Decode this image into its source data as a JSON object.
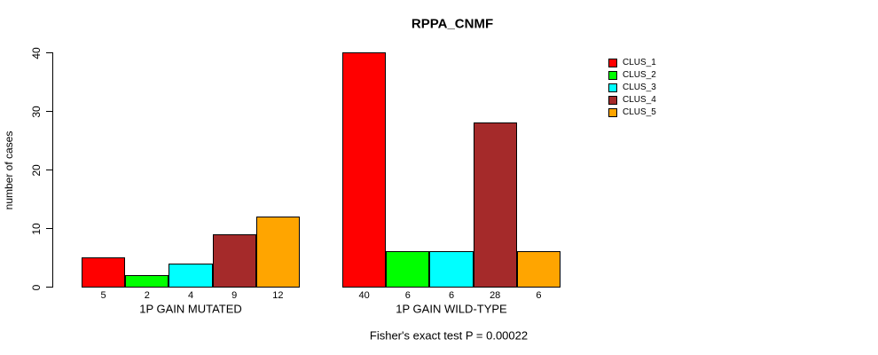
{
  "chart_data": {
    "type": "bar",
    "title": "RPPA_CNMF",
    "ylabel": "number of cases",
    "ylim": [
      0,
      40
    ],
    "yticks": [
      "0",
      "10",
      "20",
      "30",
      "40"
    ],
    "grid": false,
    "legend_position": "right-outside",
    "categories": [
      "1P GAIN MUTATED",
      "1P GAIN WILD-TYPE"
    ],
    "series": [
      {
        "name": "CLUS_1",
        "color": "#ff0000",
        "values": [
          5,
          40
        ]
      },
      {
        "name": "CLUS_2",
        "color": "#00ff00",
        "values": [
          2,
          6
        ]
      },
      {
        "name": "CLUS_3",
        "color": "#00ffff",
        "values": [
          4,
          6
        ]
      },
      {
        "name": "CLUS_4",
        "color": "#a52a2a",
        "values": [
          9,
          28
        ]
      },
      {
        "name": "CLUS_5",
        "color": "#ffa500",
        "values": [
          12,
          6
        ]
      }
    ],
    "bar_value_labels_shown": true,
    "footer": "Fisher's exact test P = 0.00022"
  }
}
